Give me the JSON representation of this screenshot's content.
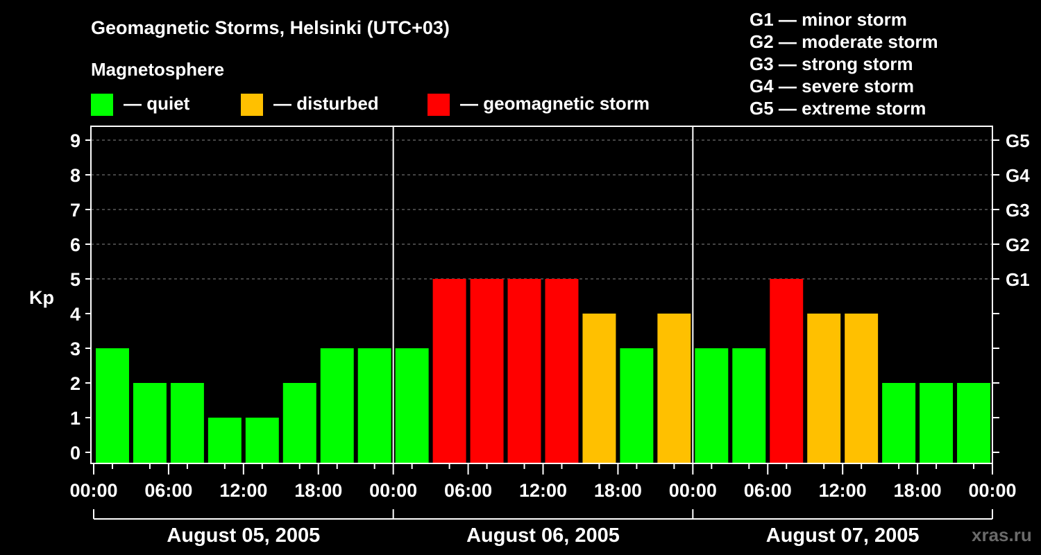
{
  "chart_data": {
    "type": "bar",
    "title": "Geomagnetic Storms, Helsinki (UTC+03)",
    "subtitle": "Magnetosphere",
    "ylabel": "Kp",
    "ylim": [
      0,
      9
    ],
    "y_ticks": [
      "0",
      "1",
      "2",
      "3",
      "4",
      "5",
      "6",
      "7",
      "8",
      "9"
    ],
    "right_ticks": [
      {
        "value": 5,
        "label": "G1"
      },
      {
        "value": 6,
        "label": "G2"
      },
      {
        "value": 7,
        "label": "G3"
      },
      {
        "value": 8,
        "label": "G4"
      },
      {
        "value": 9,
        "label": "G5"
      }
    ],
    "x_tick_labels": [
      "00:00",
      "06:00",
      "12:00",
      "18:00",
      "00:00",
      "06:00",
      "12:00",
      "18:00",
      "00:00",
      "06:00",
      "12:00",
      "18:00",
      "00:00"
    ],
    "days": [
      "August 05, 2005",
      "August 06, 2005",
      "August 07, 2005"
    ],
    "legend": [
      {
        "label": "— quiet",
        "color": "#00ff00"
      },
      {
        "label": "— disturbed",
        "color": "#ffc000"
      },
      {
        "label": "— geomagnetic storm",
        "color": "#ff0000"
      }
    ],
    "storm_scale": [
      "G1 — minor storm",
      "G2 — moderate storm",
      "G3 — strong storm",
      "G4 — severe storm",
      "G5 — extreme storm"
    ],
    "colors": {
      "quiet": "#00ff00",
      "disturbed": "#ffc000",
      "storm": "#ff0000"
    },
    "grid_y": [
      5,
      6,
      7,
      8,
      9
    ],
    "values": [
      3,
      2,
      2,
      1,
      1,
      2,
      3,
      3,
      3,
      5,
      5,
      5,
      5,
      4,
      3,
      4,
      3,
      3,
      5,
      4,
      4,
      2,
      2,
      2
    ],
    "levels": [
      "quiet",
      "quiet",
      "quiet",
      "quiet",
      "quiet",
      "quiet",
      "quiet",
      "quiet",
      "quiet",
      "storm",
      "storm",
      "storm",
      "storm",
      "disturbed",
      "quiet",
      "disturbed",
      "quiet",
      "quiet",
      "storm",
      "disturbed",
      "disturbed",
      "quiet",
      "quiet",
      "quiet"
    ]
  },
  "watermark": "xras.ru"
}
